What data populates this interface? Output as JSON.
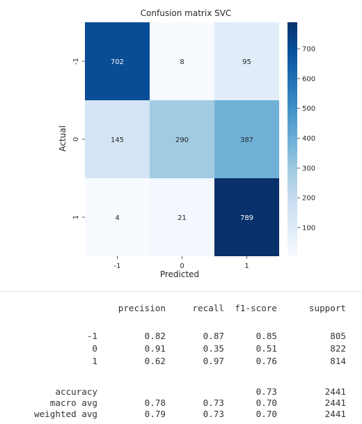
{
  "chart_data": {
    "type": "heatmap",
    "title": "Confusion matrix SVC",
    "xlabel": "Predicted",
    "ylabel": "Actual",
    "x_categories": [
      "-1",
      "0",
      "1"
    ],
    "y_categories": [
      "-1",
      "0",
      "1"
    ],
    "values": [
      [
        702,
        8,
        95
      ],
      [
        145,
        290,
        387
      ],
      [
        4,
        21,
        789
      ]
    ],
    "colormap": "Blues",
    "colorbar": {
      "min": 4,
      "max": 789,
      "ticks": [
        100,
        200,
        300,
        400,
        500,
        600,
        700
      ]
    },
    "colors": {
      "low": "#f7fbff",
      "high": "#08306b"
    }
  },
  "report": {
    "headers": [
      "precision",
      "recall",
      "f1-score",
      "support"
    ],
    "rows": [
      {
        "label": "-1",
        "precision": "0.82",
        "recall": "0.87",
        "f1": "0.85",
        "support": "805"
      },
      {
        "label": "0",
        "precision": "0.91",
        "recall": "0.35",
        "f1": "0.51",
        "support": "822"
      },
      {
        "label": "1",
        "precision": "0.62",
        "recall": "0.97",
        "f1": "0.76",
        "support": "814"
      }
    ],
    "summary": [
      {
        "label": "accuracy",
        "precision": "",
        "recall": "",
        "f1": "0.73",
        "support": "2441"
      },
      {
        "label": "macro avg",
        "precision": "0.78",
        "recall": "0.73",
        "f1": "0.70",
        "support": "2441"
      },
      {
        "label": "weighted avg",
        "precision": "0.79",
        "recall": "0.73",
        "f1": "0.70",
        "support": "2441"
      }
    ]
  }
}
